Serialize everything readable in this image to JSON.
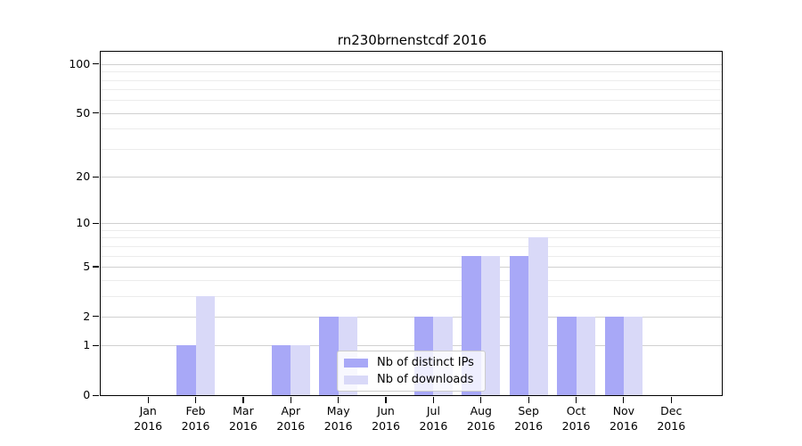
{
  "chart_data": {
    "type": "bar",
    "title": "rn230brnenstcdf 2016",
    "categories": [
      {
        "month": "Jan",
        "year": "2016"
      },
      {
        "month": "Feb",
        "year": "2016"
      },
      {
        "month": "Mar",
        "year": "2016"
      },
      {
        "month": "Apr",
        "year": "2016"
      },
      {
        "month": "May",
        "year": "2016"
      },
      {
        "month": "Jun",
        "year": "2016"
      },
      {
        "month": "Jul",
        "year": "2016"
      },
      {
        "month": "Aug",
        "year": "2016"
      },
      {
        "month": "Sep",
        "year": "2016"
      },
      {
        "month": "Oct",
        "year": "2016"
      },
      {
        "month": "Nov",
        "year": "2016"
      },
      {
        "month": "Dec",
        "year": "2016"
      }
    ],
    "series": [
      {
        "name": "Nb of distinct IPs",
        "color": "#a8a8f7",
        "values": [
          0,
          1,
          0,
          1,
          2,
          0,
          2,
          6,
          6,
          2,
          2,
          0
        ]
      },
      {
        "name": "Nb of downloads",
        "color": "#d9d9f8",
        "values": [
          0,
          3,
          0,
          1,
          2,
          0,
          2,
          6,
          8,
          2,
          2,
          0
        ]
      }
    ],
    "yscale": "log1p",
    "yticks": [
      0,
      1,
      2,
      5,
      10,
      20,
      50,
      100
    ],
    "yticks_minor": [
      3,
      4,
      6,
      7,
      8,
      9,
      30,
      40,
      60,
      70,
      80,
      90
    ],
    "ylim": [
      0,
      118
    ],
    "xlabel": "",
    "ylabel": "",
    "grid": "horizontal",
    "legend_position": "lower-center",
    "style": {
      "major_grid_color": "#d0d0d0",
      "minor_grid_color": "#ececec"
    }
  }
}
